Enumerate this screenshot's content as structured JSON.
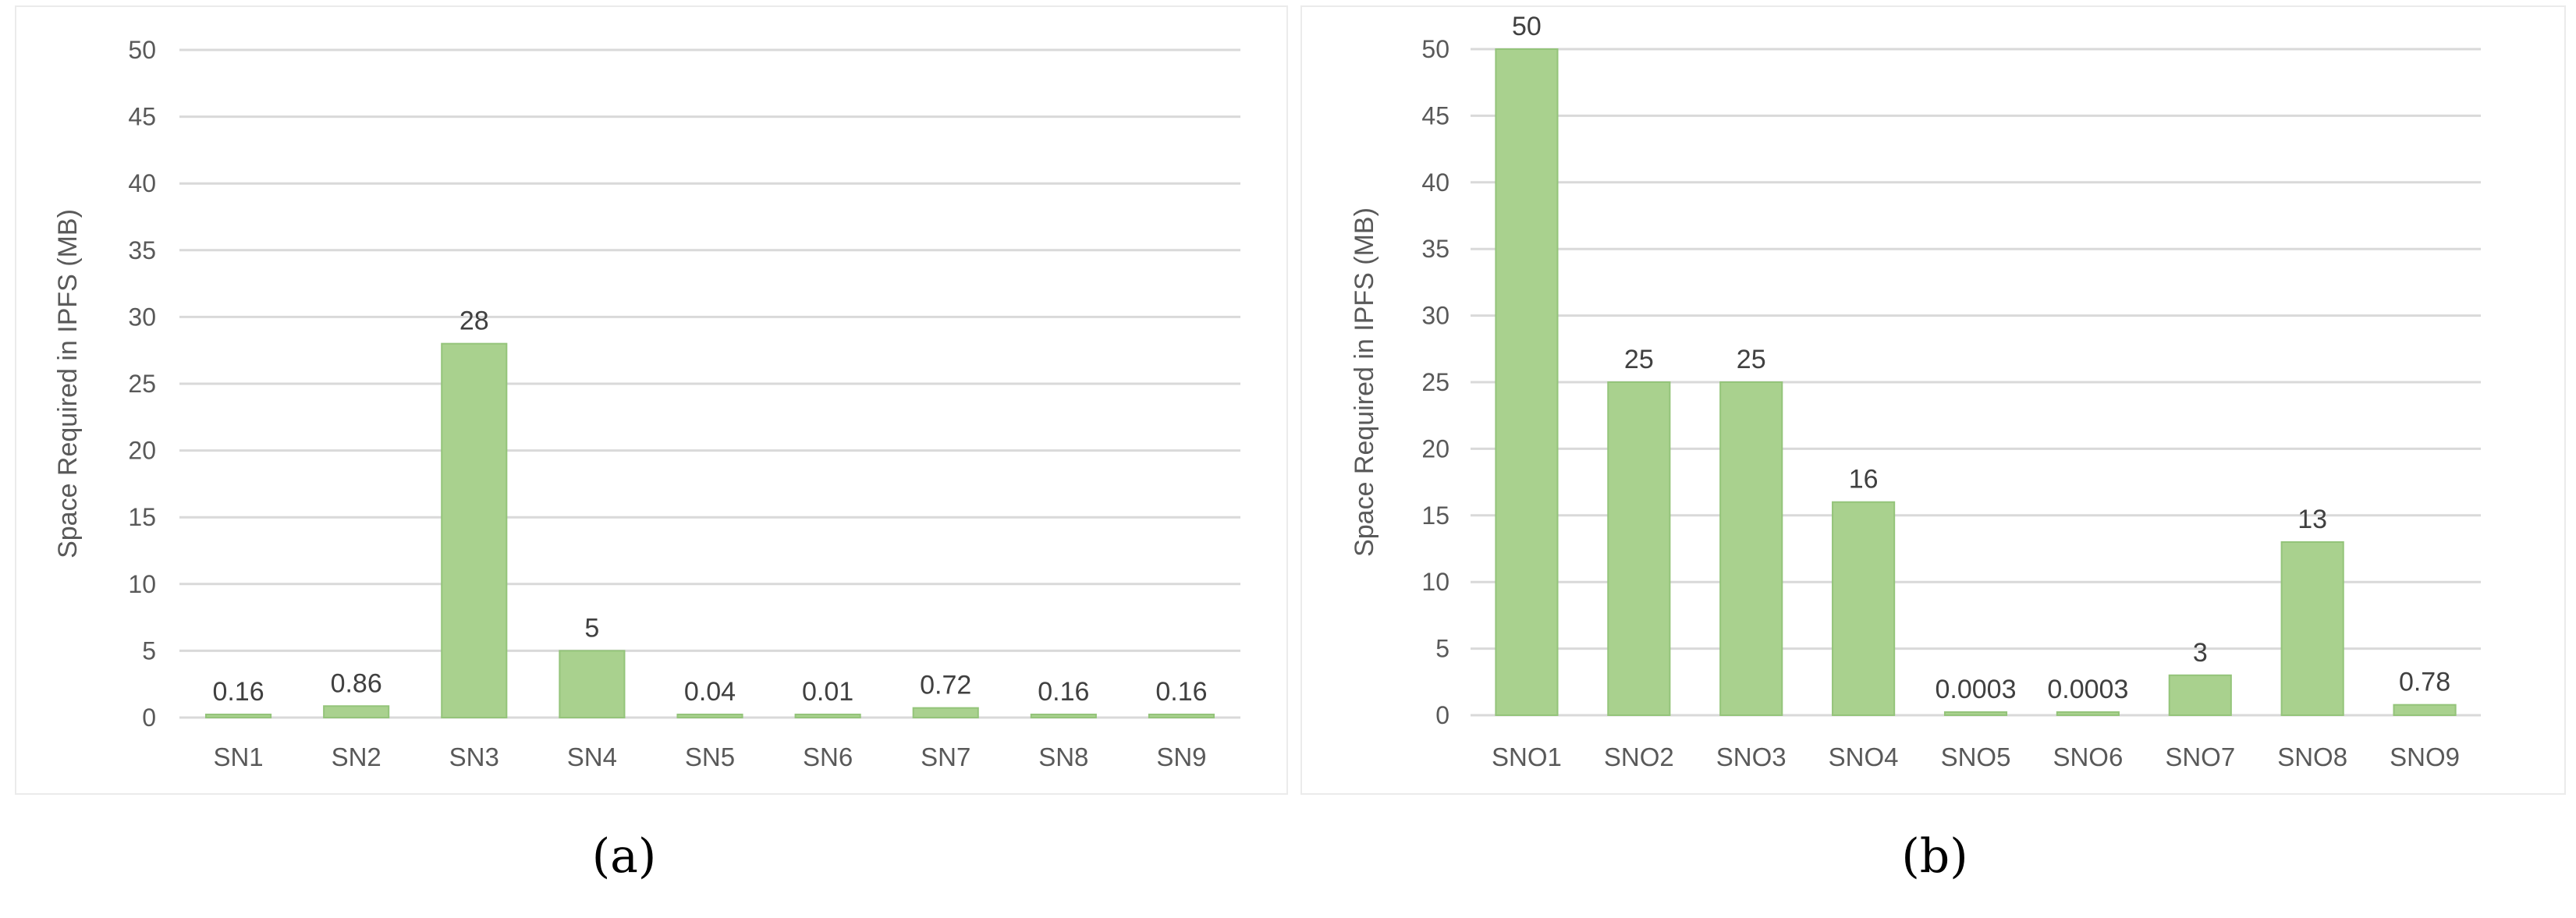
{
  "colors": {
    "bar_fill": "#a9d18e",
    "bar_edge": "#94c47a",
    "grid": "#d9d9d9",
    "axis_text": "#595959",
    "caption_text": "#000000",
    "frame": "#ebebeb"
  },
  "chart_data": [
    {
      "type": "bar",
      "panel_label": "(a)",
      "title": "",
      "xlabel": "",
      "ylabel": "Space Required in IPFS (MB)",
      "ylim": [
        0,
        50
      ],
      "yticks": [
        "0",
        "5",
        "10",
        "15",
        "20",
        "25",
        "30",
        "35",
        "40",
        "45",
        "50"
      ],
      "grid": true,
      "categories": [
        "SN1",
        "SN2",
        "SN3",
        "SN4",
        "SN5",
        "SN6",
        "SN7",
        "SN8",
        "SN9"
      ],
      "values": [
        0.16,
        0.86,
        28,
        5,
        0.04,
        0.01,
        0.72,
        0.16,
        0.16
      ],
      "data_labels": [
        "0.16",
        "0.86",
        "28",
        "5",
        "0.04",
        "0.01",
        "0.72",
        "0.16",
        "0.16"
      ]
    },
    {
      "type": "bar",
      "panel_label": "(b)",
      "title": "",
      "xlabel": "",
      "ylabel": "Space Required in IPFS (MB)",
      "ylim": [
        0,
        50
      ],
      "yticks": [
        "0",
        "5",
        "10",
        "15",
        "20",
        "25",
        "30",
        "35",
        "40",
        "45",
        "50"
      ],
      "grid": true,
      "categories": [
        "SNO1",
        "SNO2",
        "SNO3",
        "SNO4",
        "SNO5",
        "SNO6",
        "SNO7",
        "SNO8",
        "SNO9"
      ],
      "values": [
        50,
        25,
        25,
        16,
        0.0003,
        0.0003,
        3,
        13,
        0.78
      ],
      "data_labels": [
        "50",
        "25",
        "25",
        "16",
        "0.0003",
        "0.0003",
        "3",
        "13",
        "0.78"
      ]
    }
  ]
}
